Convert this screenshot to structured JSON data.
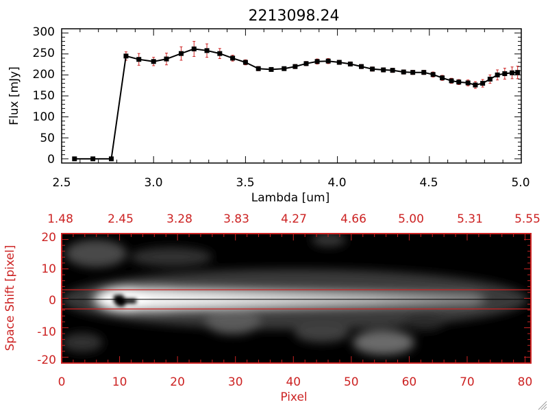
{
  "colors": {
    "accent": "#cc2222",
    "axis": "#000000",
    "errorbar": "#cc2222"
  },
  "chart_data": [
    {
      "type": "line",
      "title": "2213098.24",
      "xlabel": "Lambda [um]",
      "ylabel": "Flux [mJy]",
      "xlim": [
        2.5,
        5.0
      ],
      "ylim": [
        -10,
        310
      ],
      "xticks": [
        "2.5",
        "3.0",
        "3.5",
        "4.0",
        "4.5",
        "5.0"
      ],
      "yticks": [
        "0",
        "50",
        "100",
        "150",
        "200",
        "250",
        "300"
      ],
      "series": [
        {
          "name": "flux",
          "x": [
            2.57,
            2.67,
            2.77,
            2.85,
            2.92,
            3.0,
            3.07,
            3.15,
            3.22,
            3.29,
            3.36,
            3.43,
            3.5,
            3.57,
            3.64,
            3.71,
            3.77,
            3.83,
            3.89,
            3.95,
            4.01,
            4.07,
            4.13,
            4.19,
            4.25,
            4.3,
            4.36,
            4.41,
            4.47,
            4.52,
            4.57,
            4.62,
            4.66,
            4.71,
            4.75,
            4.79,
            4.83,
            4.87,
            4.91,
            4.95,
            4.98
          ],
          "y": [
            0,
            0,
            0,
            245,
            237,
            232,
            238,
            251,
            262,
            258,
            251,
            240,
            230,
            215,
            213,
            215,
            220,
            227,
            232,
            233,
            230,
            226,
            220,
            214,
            212,
            211,
            207,
            206,
            206,
            201,
            193,
            186,
            183,
            181,
            176,
            180,
            190,
            200,
            203,
            205,
            206
          ],
          "err": [
            0,
            0,
            0,
            10,
            14,
            10,
            14,
            16,
            18,
            16,
            12,
            7,
            6,
            5,
            4,
            4,
            5,
            5,
            6,
            6,
            5,
            5,
            5,
            5,
            5,
            5,
            5,
            5,
            5,
            6,
            6,
            6,
            6,
            7,
            8,
            9,
            10,
            12,
            13,
            14,
            15
          ]
        }
      ]
    },
    {
      "type": "heatmap",
      "xlabel": "Pixel",
      "ylabel": "Space Shift [pixel]",
      "xlim": [
        0,
        81
      ],
      "ylim": [
        -22,
        22
      ],
      "xticks": [
        "0",
        "10",
        "20",
        "30",
        "40",
        "50",
        "60",
        "70",
        "80"
      ],
      "yticks": [
        "-20",
        "-10",
        "0",
        "10",
        "20"
      ],
      "top_axis_ticks": [
        "1.48",
        "2.45",
        "3.28",
        "3.83",
        "4.27",
        "4.66",
        "5.00",
        "5.31",
        "5.55"
      ],
      "extraction_band": [
        -3,
        3
      ],
      "center_line": 0
    }
  ]
}
